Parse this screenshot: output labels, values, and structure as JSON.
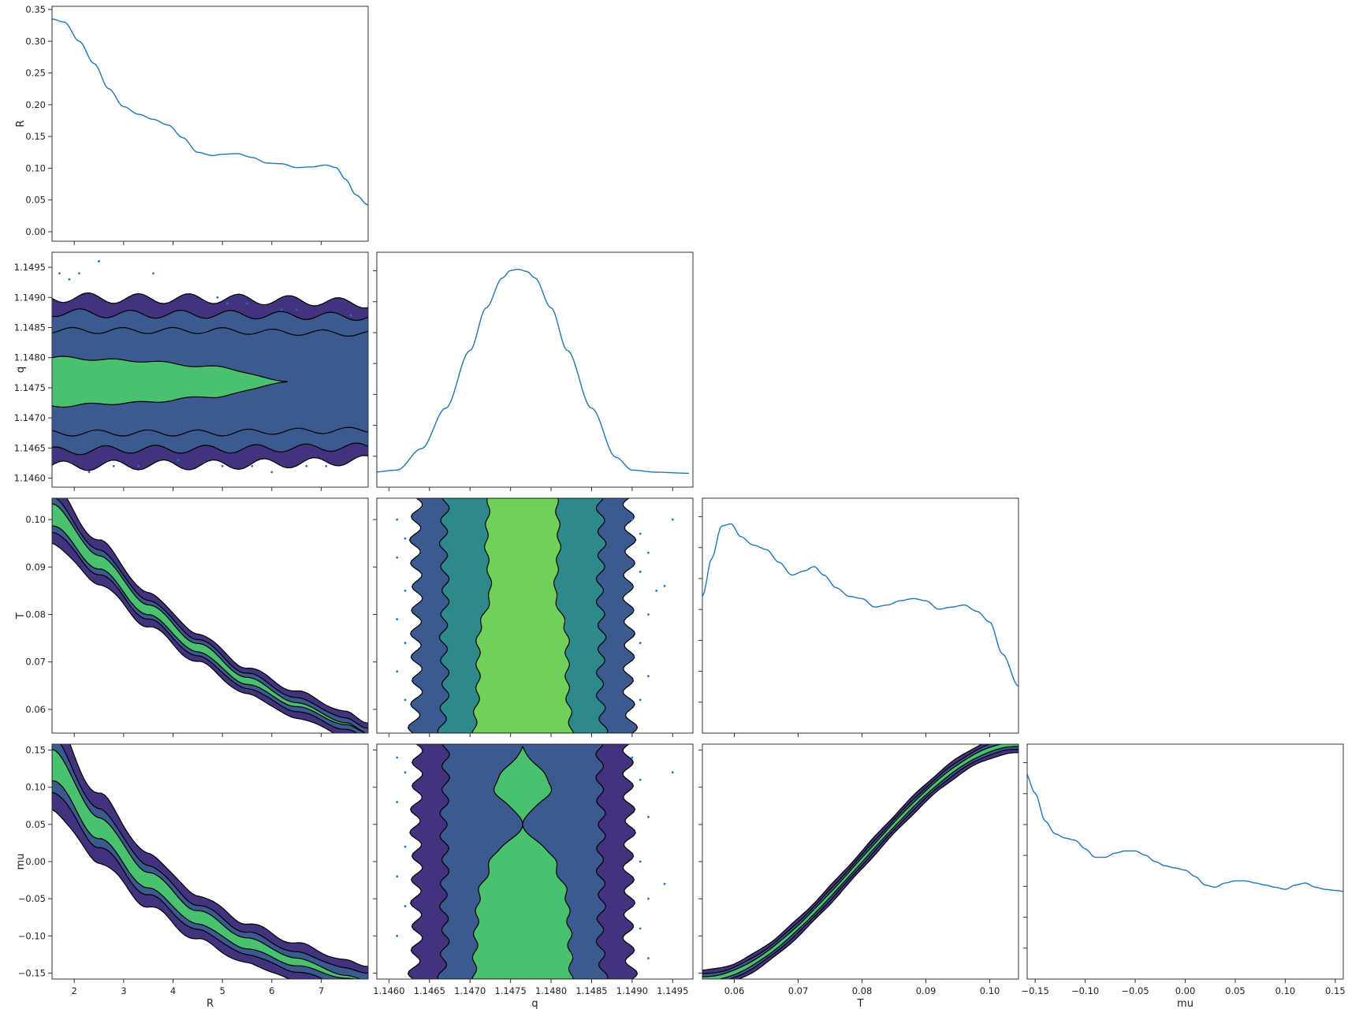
{
  "chart_data": {
    "type": "corner",
    "variables": [
      "R",
      "q",
      "T",
      "mu"
    ],
    "axes": {
      "R": {
        "label": "R",
        "range": [
          1.55,
          7.95
        ],
        "ticks": [
          2,
          3,
          4,
          5,
          6,
          7
        ],
        "tick_labels": [
          "2",
          "3",
          "4",
          "5",
          "6",
          "7"
        ]
      },
      "q": {
        "label": "q",
        "range": [
          1.14585,
          1.14975
        ],
        "ticks": [
          1.146,
          1.1465,
          1.147,
          1.1475,
          1.148,
          1.1485,
          1.149,
          1.1495
        ],
        "tick_labels": [
          "1.1460",
          "1.1465",
          "1.1470",
          "1.1475",
          "1.1480",
          "1.1485",
          "1.1490",
          "1.1495"
        ]
      },
      "T": {
        "label": "T",
        "range": [
          0.055,
          0.1045
        ],
        "ticks": [
          0.06,
          0.07,
          0.08,
          0.09,
          0.1
        ],
        "tick_labels": [
          "0.06",
          "0.07",
          "0.08",
          "0.09",
          "0.10"
        ]
      },
      "mu": {
        "label": "mu",
        "range": [
          -0.158,
          0.158
        ],
        "ticks": [
          -0.15,
          -0.1,
          -0.05,
          0.0,
          0.05,
          0.1,
          0.15
        ],
        "tick_labels": [
          "-0.15",
          "-0.10",
          "-0.05",
          "0.00",
          "0.05",
          "0.10",
          "0.15"
        ]
      }
    },
    "diagonal_R_ylim": [
      -0.015,
      0.355
    ],
    "diagonal_R_ticks": [
      0.0,
      0.05,
      0.1,
      0.15,
      0.2,
      0.25,
      0.3,
      0.35
    ],
    "diagonal_R_tick_labels": [
      "0.00",
      "0.05",
      "0.10",
      "0.15",
      "0.20",
      "0.25",
      "0.30",
      "0.35"
    ],
    "diagonals": {
      "R": {
        "x": [
          1.55,
          1.8,
          2.1,
          2.4,
          2.7,
          3.0,
          3.3,
          3.6,
          3.9,
          4.2,
          4.5,
          4.8,
          5.0,
          5.3,
          5.6,
          5.9,
          6.2,
          6.5,
          6.8,
          7.1,
          7.3,
          7.5,
          7.7,
          7.95
        ],
        "y": [
          0.335,
          0.33,
          0.3,
          0.265,
          0.225,
          0.197,
          0.185,
          0.177,
          0.168,
          0.148,
          0.125,
          0.12,
          0.122,
          0.123,
          0.117,
          0.108,
          0.107,
          0.101,
          0.102,
          0.105,
          0.101,
          0.082,
          0.058,
          0.042
        ]
      },
      "q": {
        "x": [
          1.1458,
          1.1461,
          1.1464,
          1.1467,
          1.147,
          1.1472,
          1.1474,
          1.1475,
          1.1476,
          1.1477,
          1.1478,
          1.148,
          1.1482,
          1.1485,
          1.1488,
          1.149,
          1.1493,
          1.1497
        ],
        "y": [
          0.05,
          0.06,
          0.16,
          0.35,
          0.62,
          0.82,
          0.96,
          0.995,
          1.0,
          0.99,
          0.96,
          0.82,
          0.62,
          0.35,
          0.12,
          0.06,
          0.05,
          0.045
        ]
      },
      "T": {
        "x": [
          0.055,
          0.0565,
          0.058,
          0.0595,
          0.061,
          0.063,
          0.065,
          0.067,
          0.069,
          0.071,
          0.0725,
          0.074,
          0.076,
          0.078,
          0.08,
          0.082,
          0.084,
          0.086,
          0.088,
          0.09,
          0.092,
          0.094,
          0.096,
          0.098,
          0.1,
          0.102,
          0.1045
        ],
        "y": [
          0.62,
          0.8,
          0.95,
          0.96,
          0.9,
          0.86,
          0.84,
          0.78,
          0.72,
          0.74,
          0.76,
          0.72,
          0.66,
          0.62,
          0.61,
          0.57,
          0.58,
          0.6,
          0.61,
          0.6,
          0.56,
          0.57,
          0.58,
          0.55,
          0.5,
          0.35,
          0.2
        ]
      },
      "mu": {
        "x": [
          -0.16,
          -0.15,
          -0.14,
          -0.13,
          -0.12,
          -0.11,
          -0.1,
          -0.09,
          -0.08,
          -0.07,
          -0.06,
          -0.05,
          -0.04,
          -0.03,
          -0.02,
          -0.01,
          0.0,
          0.01,
          0.02,
          0.03,
          0.04,
          0.05,
          0.06,
          0.07,
          0.08,
          0.09,
          0.1,
          0.11,
          0.12,
          0.13,
          0.14,
          0.15,
          0.16
        ],
        "y": [
          0.95,
          0.85,
          0.72,
          0.66,
          0.64,
          0.63,
          0.59,
          0.55,
          0.55,
          0.57,
          0.58,
          0.58,
          0.56,
          0.53,
          0.51,
          0.5,
          0.49,
          0.46,
          0.42,
          0.41,
          0.43,
          0.44,
          0.44,
          0.43,
          0.42,
          0.41,
          0.4,
          0.42,
          0.43,
          0.41,
          0.4,
          0.395,
          0.39
        ]
      }
    },
    "levels": [
      "#43327e",
      "#3b5a8f",
      "#2e8a8a",
      "#49c16e",
      "#6fd05a"
    ],
    "pairs": [
      {
        "x": "R",
        "y": "q",
        "kind": "band",
        "center": 1.1476,
        "k": [
          0.0,
          1.6,
          3.2,
          4.8,
          6.4,
          8.0
        ],
        "half_widths": [
          [
            0.00145,
            0.0014,
            0.00138,
            0.00138,
            0.00135,
            0.0013
          ],
          [
            0.0012,
            0.00115,
            0.00112,
            0.00112,
            0.0011,
            0.00108
          ],
          [
            0.0009,
            0.00085,
            0.00085,
            0.00085,
            0.00082,
            0.0008
          ],
          [
            0.00045,
            0.0004,
            0.00035,
            0.00025,
            0.0,
            0.0
          ]
        ],
        "colors": [
          0,
          1,
          1,
          3
        ]
      },
      {
        "x": "R",
        "y": "T",
        "kind": "curve",
        "k": [
          1.55,
          2.5,
          3.5,
          4.5,
          5.5,
          6.5,
          7.5,
          7.95
        ],
        "center": [
          0.101,
          0.091,
          0.081,
          0.073,
          0.066,
          0.061,
          0.057,
          0.055
        ],
        "half_widths": [
          [
            0.006,
            0.0045,
            0.0035,
            0.003,
            0.0028,
            0.0028,
            0.0025,
            0.0022
          ],
          [
            0.0035,
            0.0025,
            0.002,
            0.0018,
            0.0016,
            0.0014,
            0.0012,
            0.001
          ],
          [
            0.0022,
            0.0014,
            0.0011,
            0.0009,
            0.0007,
            0.0004,
            0.0002,
            0.0
          ]
        ],
        "colors": [
          0,
          1,
          3
        ]
      },
      {
        "x": "R",
        "y": "mu",
        "kind": "curve",
        "k": [
          1.55,
          2.5,
          3.5,
          4.5,
          5.5,
          6.5,
          7.5,
          7.95
        ],
        "center": [
          0.13,
          0.045,
          -0.025,
          -0.075,
          -0.11,
          -0.135,
          -0.155,
          -0.16
        ],
        "half_widths": [
          [
            0.06,
            0.045,
            0.035,
            0.03,
            0.027,
            0.025,
            0.022,
            0.02
          ],
          [
            0.035,
            0.025,
            0.02,
            0.017,
            0.015,
            0.013,
            0.012,
            0.01
          ],
          [
            0.02,
            0.014,
            0.011,
            0.009,
            0.007,
            0.005,
            0.002,
            0.0
          ]
        ],
        "colors": [
          0,
          1,
          3
        ]
      },
      {
        "x": "q",
        "y": "T",
        "kind": "vband",
        "center": 1.14765,
        "k": [
          0.055,
          0.065,
          0.075,
          0.085,
          0.095,
          0.1045
        ],
        "half_widths": [
          [
            0.00135,
            0.0013,
            0.00132,
            0.0013,
            0.00133,
            0.0013
          ],
          [
            0.001,
            0.00095,
            0.00098,
            0.00095,
            0.00098,
            0.00095
          ],
          [
            0.0006,
            0.00055,
            0.00055,
            0.0004,
            0.00045,
            0.00042
          ]
        ],
        "colors": [
          1,
          2,
          4
        ]
      },
      {
        "x": "q",
        "y": "mu",
        "kind": "vband",
        "center": 1.14765,
        "k": [
          -0.158,
          -0.1,
          -0.05,
          0.0,
          0.05,
          0.1,
          0.158
        ],
        "half_widths": [
          [
            0.00135,
            0.0013,
            0.00132,
            0.0013,
            0.00133,
            0.0013,
            0.0013
          ],
          [
            0.001,
            0.00095,
            0.00098,
            0.00095,
            0.00098,
            0.00095,
            0.00095
          ],
          [
            0.0006,
            0.00058,
            0.00055,
            0.0004,
            0.0,
            0.00035,
            0.0
          ]
        ],
        "colors": [
          0,
          1,
          3
        ]
      },
      {
        "x": "T",
        "y": "mu",
        "kind": "diag",
        "k": [
          0.055,
          0.1045
        ],
        "center": [
          -0.158,
          0.158
        ],
        "half_widths": [
          [
            0.012,
            0.012
          ],
          [
            0.007,
            0.007
          ],
          [
            0.003,
            0.003
          ]
        ],
        "colors": [
          0,
          1,
          3
        ]
      }
    ],
    "scatter": {
      "R_q": [
        [
          1.7,
          1.1494
        ],
        [
          1.9,
          1.1493
        ],
        [
          2.1,
          1.1494
        ],
        [
          2.5,
          1.1496
        ],
        [
          3.6,
          1.1494
        ],
        [
          4.9,
          1.149
        ],
        [
          5.1,
          1.1489
        ],
        [
          5.5,
          1.1489
        ],
        [
          6.2,
          1.1488
        ],
        [
          6.5,
          1.1488
        ],
        [
          7.3,
          1.1487
        ],
        [
          7.6,
          1.1487
        ],
        [
          2.3,
          1.1461
        ],
        [
          2.8,
          1.1462
        ],
        [
          3.3,
          1.1462
        ],
        [
          4.1,
          1.1463
        ],
        [
          5.0,
          1.1462
        ],
        [
          5.6,
          1.1462
        ],
        [
          6.0,
          1.1461
        ],
        [
          6.7,
          1.1462
        ],
        [
          7.1,
          1.1462
        ]
      ],
      "q_T": [
        [
          1.1461,
          0.1
        ],
        [
          1.1462,
          0.096
        ],
        [
          1.1461,
          0.092
        ],
        [
          1.1462,
          0.085
        ],
        [
          1.1461,
          0.079
        ],
        [
          1.1462,
          0.074
        ],
        [
          1.1461,
          0.068
        ],
        [
          1.1462,
          0.062
        ],
        [
          1.149,
          0.1
        ],
        [
          1.1491,
          0.097
        ],
        [
          1.1492,
          0.093
        ],
        [
          1.1491,
          0.089
        ],
        [
          1.1493,
          0.085
        ],
        [
          1.1492,
          0.08
        ],
        [
          1.1491,
          0.074
        ],
        [
          1.1492,
          0.067
        ],
        [
          1.1491,
          0.062
        ],
        [
          1.1495,
          0.1
        ],
        [
          1.1494,
          0.086
        ]
      ],
      "q_mu": [
        [
          1.1461,
          0.14
        ],
        [
          1.1462,
          0.12
        ],
        [
          1.1461,
          0.08
        ],
        [
          1.1462,
          0.02
        ],
        [
          1.1461,
          -0.02
        ],
        [
          1.1462,
          -0.06
        ],
        [
          1.1461,
          -0.1
        ],
        [
          1.149,
          0.14
        ],
        [
          1.1491,
          0.11
        ],
        [
          1.1492,
          0.06
        ],
        [
          1.1491,
          0.0
        ],
        [
          1.1492,
          -0.05
        ],
        [
          1.1491,
          -0.09
        ],
        [
          1.1492,
          -0.13
        ],
        [
          1.1495,
          0.12
        ],
        [
          1.1494,
          -0.03
        ]
      ]
    }
  }
}
